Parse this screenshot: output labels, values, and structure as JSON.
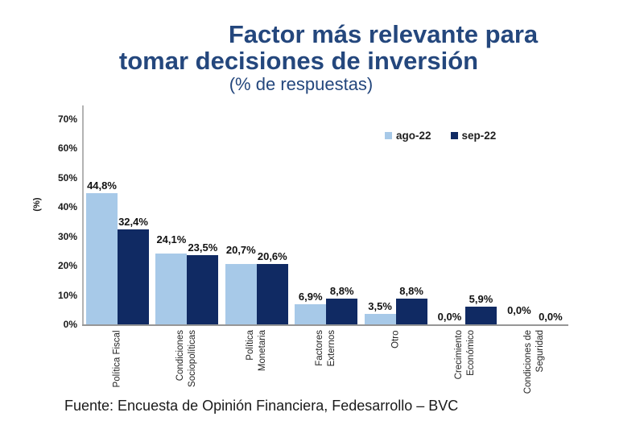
{
  "title": {
    "line1": "Factor más relevante para",
    "line2": "tomar decisiones de inversión",
    "subtitle": "(% de respuestas)",
    "color": "#24477d"
  },
  "chart_data": {
    "type": "bar",
    "title": "Factor más relevante para tomar decisiones de inversión (% de respuestas)",
    "categories": [
      "Política Fiscal",
      "Condiciones\nSociopolíticas",
      "Política\nMonetaria",
      "Factores\nExternos",
      "Otro",
      "Crecimiento\nEconómico",
      "Condiciones de\nSeguridad"
    ],
    "series": [
      {
        "name": "ago-22",
        "color": "#a7c9e8",
        "values": [
          44.8,
          24.1,
          20.7,
          6.9,
          3.5,
          0.0,
          0.0
        ],
        "value_labels": [
          "44,8%",
          "24,1%",
          "20,7%",
          "6,9%",
          "3,5%",
          "0,0%",
          "0,0%"
        ]
      },
      {
        "name": "sep-22",
        "color": "#102a63",
        "values": [
          32.4,
          23.5,
          20.6,
          8.8,
          8.8,
          5.9,
          0.0
        ],
        "value_labels": [
          "32,4%",
          "23,5%",
          "20,6%",
          "8,8%",
          "8,8%",
          "5,9%",
          "0,0%"
        ]
      }
    ],
    "ylabel": "(%)",
    "yticks": [
      "0%",
      "10%",
      "20%",
      "30%",
      "40%",
      "50%",
      "60%",
      "70%"
    ],
    "ylim": [
      0,
      70
    ],
    "grid": false,
    "legend_position": "top-right"
  },
  "footer": {
    "source": "Fuente: Encuesta de Opinión Financiera, Fedesarrollo – BVC"
  }
}
